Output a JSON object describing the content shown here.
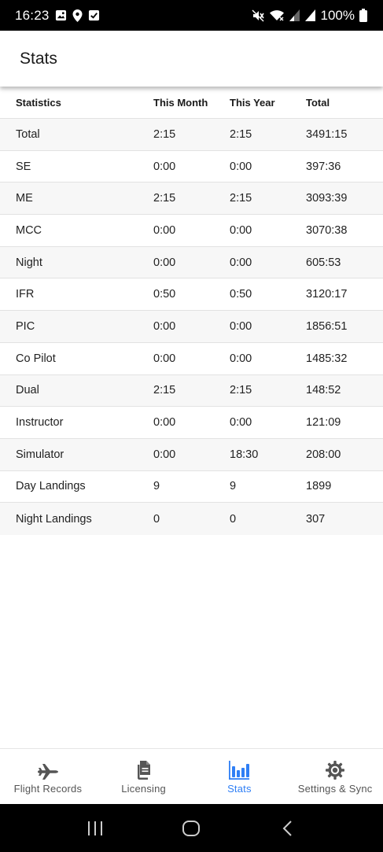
{
  "status_bar": {
    "time": "16:23",
    "battery": "100%"
  },
  "app_bar": {
    "title": "Stats"
  },
  "table": {
    "headers": [
      "Statistics",
      "This Month",
      "This Year",
      "Total"
    ],
    "rows": [
      [
        "Total",
        "2:15",
        "2:15",
        "3491:15"
      ],
      [
        "SE",
        "0:00",
        "0:00",
        "397:36"
      ],
      [
        "ME",
        "2:15",
        "2:15",
        "3093:39"
      ],
      [
        "MCC",
        "0:00",
        "0:00",
        "3070:38"
      ],
      [
        "Night",
        "0:00",
        "0:00",
        "605:53"
      ],
      [
        "IFR",
        "0:50",
        "0:50",
        "3120:17"
      ],
      [
        "PIC",
        "0:00",
        "0:00",
        "1856:51"
      ],
      [
        "Co Pilot",
        "0:00",
        "0:00",
        "1485:32"
      ],
      [
        "Dual",
        "2:15",
        "2:15",
        "148:52"
      ],
      [
        "Instructor",
        "0:00",
        "0:00",
        "121:09"
      ],
      [
        "Simulator",
        "0:00",
        "18:30",
        "208:00"
      ],
      [
        "Day Landings",
        "9",
        "9",
        "1899"
      ],
      [
        "Night Landings",
        "0",
        "0",
        "307"
      ]
    ]
  },
  "bottom_nav": {
    "items": [
      {
        "label": "Flight Records",
        "icon": "airplane-icon",
        "active": false
      },
      {
        "label": "Licensing",
        "icon": "documents-icon",
        "active": false
      },
      {
        "label": "Stats",
        "icon": "bar-chart-icon",
        "active": true
      },
      {
        "label": "Settings & Sync",
        "icon": "gear-icon",
        "active": false
      }
    ]
  },
  "colors": {
    "accent": "#2f7ff5",
    "inactive": "#555555",
    "row_alt": "#f7f7f7"
  }
}
